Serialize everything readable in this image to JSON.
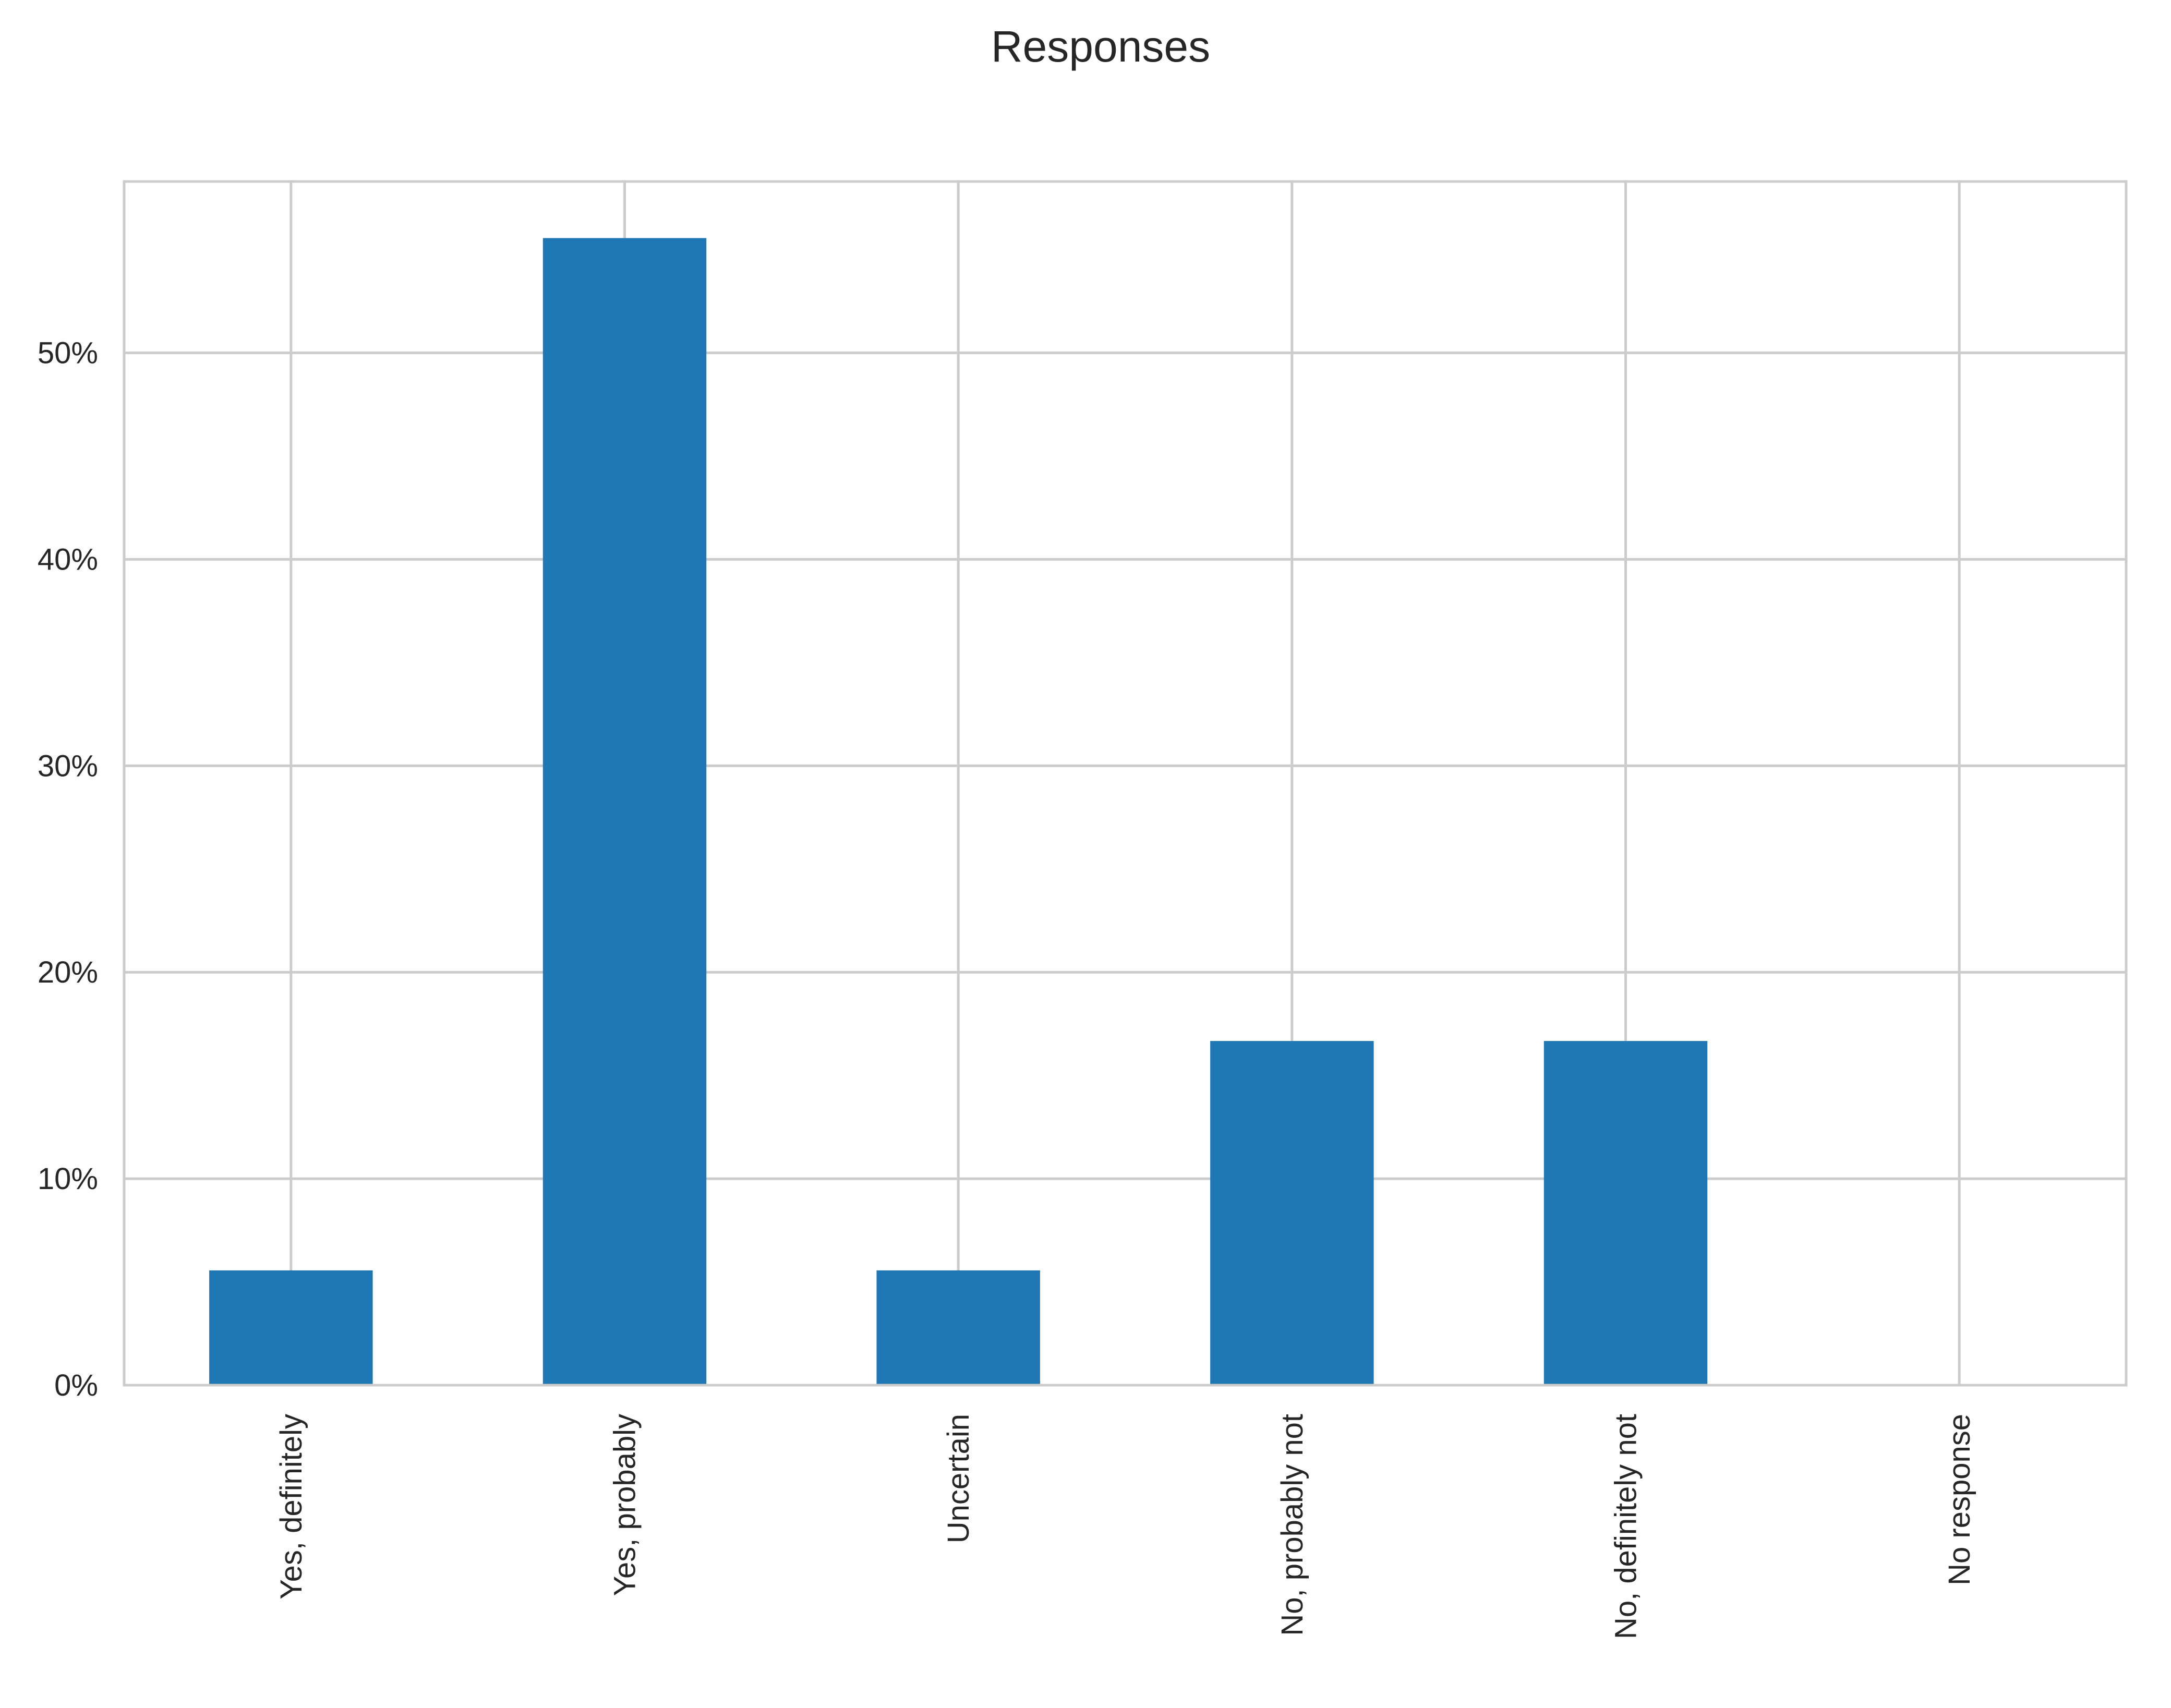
{
  "chart_data": {
    "type": "bar",
    "title": "Responses",
    "xlabel": "",
    "ylabel": "",
    "categories": [
      "Yes, definitely",
      "Yes, probably",
      "Uncertain",
      "No, probably not",
      "No, definitely not",
      "No response"
    ],
    "values": [
      5.56,
      55.56,
      5.56,
      16.67,
      16.67,
      0
    ],
    "ylim": [
      0,
      58.3
    ],
    "yticks": [
      0,
      10,
      20,
      30,
      40,
      50
    ],
    "ytick_labels": [
      "0%",
      "10%",
      "20%",
      "30%",
      "40%",
      "50%"
    ],
    "grid": true,
    "legend": "none",
    "colors": {
      "bar": "#1f77b4",
      "grid": "#cccccc",
      "text": "#262626"
    }
  }
}
